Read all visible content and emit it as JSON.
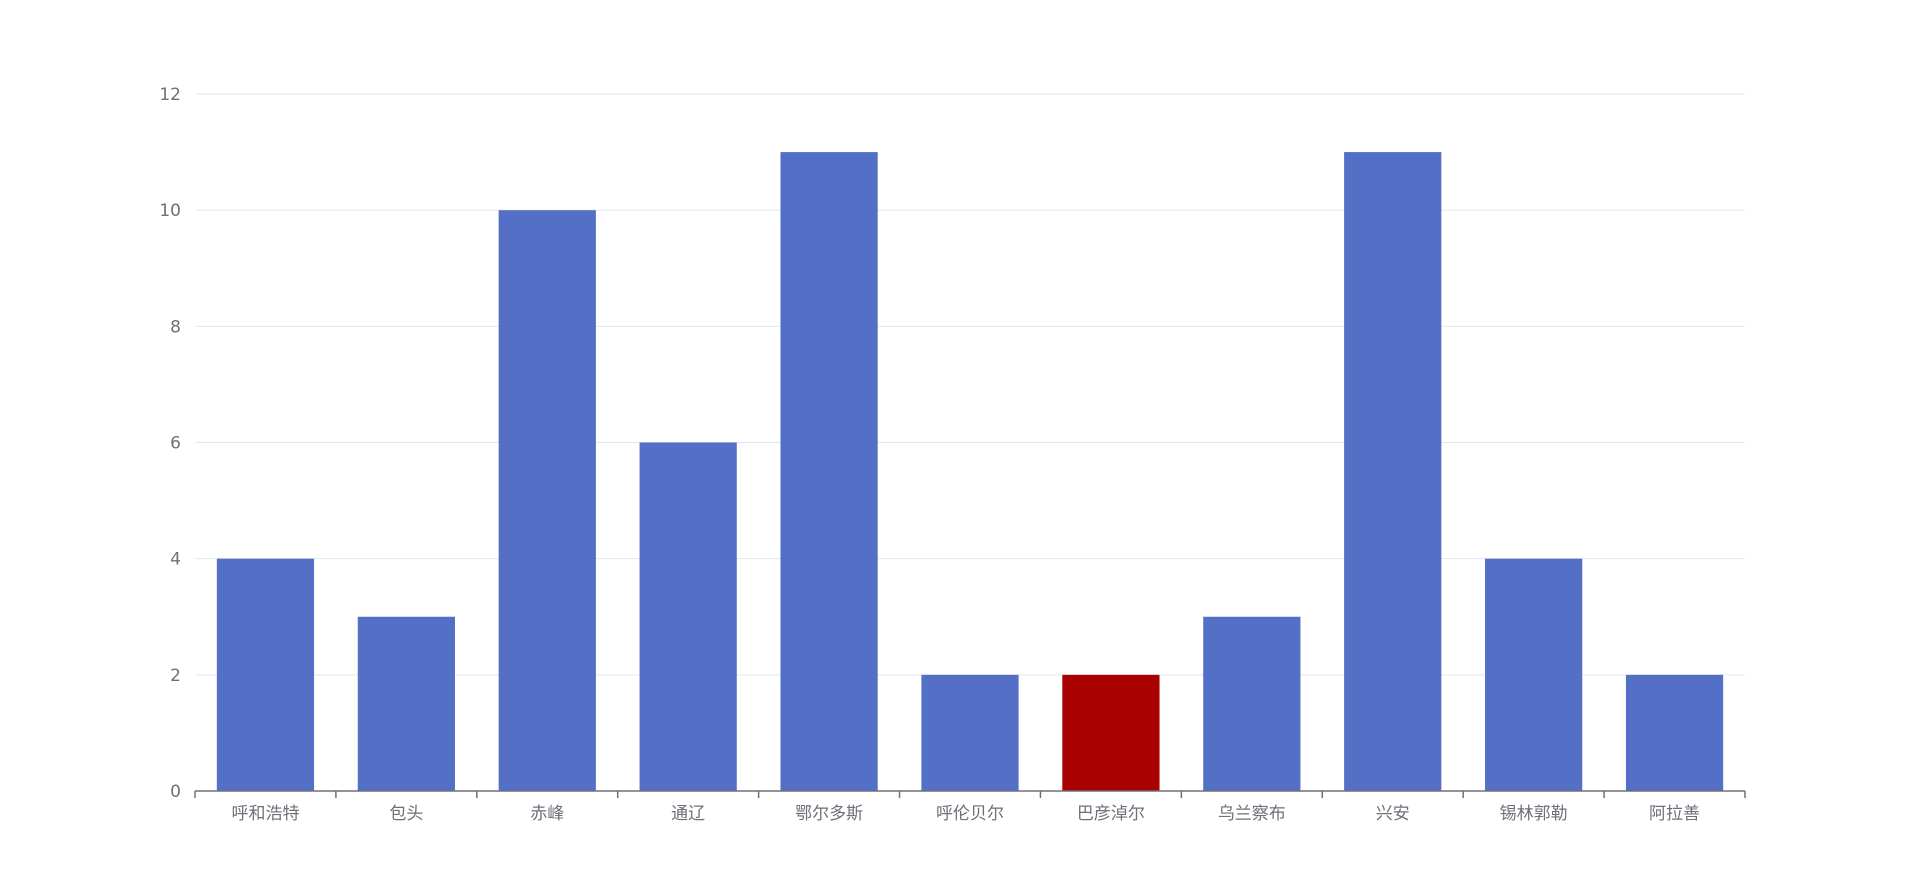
{
  "chart_data": {
    "type": "bar",
    "title": "",
    "xlabel": "",
    "ylabel": "",
    "ylim": [
      0,
      12
    ],
    "yticks": [
      0,
      2,
      4,
      6,
      8,
      10,
      12
    ],
    "grid": true,
    "categories": [
      "呼和浩特",
      "包头",
      "赤峰",
      "通辽",
      "鄂尔多斯",
      "呼伦贝尔",
      "巴彦淖尔",
      "乌兰察布",
      "兴安",
      "锡林郭勒",
      "阿拉善"
    ],
    "values": [
      4,
      3,
      10,
      6,
      11,
      2,
      2,
      3,
      11,
      4,
      2
    ],
    "highlight_index": 6,
    "colors": {
      "bar": "#5470c6",
      "highlight": "#a90000",
      "grid": "#e0e6f1",
      "axis": "#6e7079",
      "text": "#6e7079"
    }
  }
}
